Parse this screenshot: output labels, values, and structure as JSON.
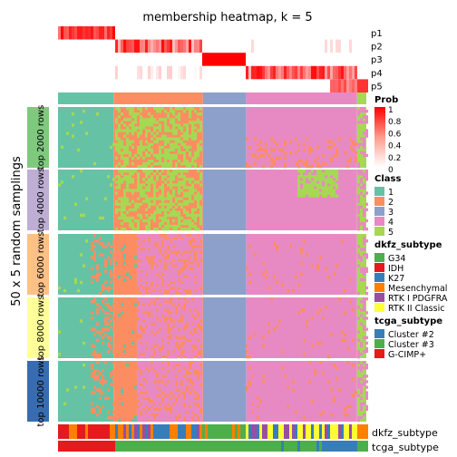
{
  "chart_data": {
    "type": "heatmap",
    "title": "membership heatmap, k = 5",
    "y_title": "50 x 5 random samplings",
    "probability_rows": [
      "p1",
      "p2",
      "p3",
      "p4",
      "p5"
    ],
    "class_row_label": "Class",
    "row_groups": [
      {
        "label": "top 2000 rows",
        "color": "#7fc97f"
      },
      {
        "label": "top 4000 rows",
        "color": "#beaed4"
      },
      {
        "label": "top 6000 rows",
        "color": "#fdc086"
      },
      {
        "label": "top 8000 rows",
        "color": "#ffff99"
      },
      {
        "label": "top 10000 rows",
        "color": "#386cb0"
      }
    ],
    "bottom_annotations": [
      "dkfz_subtype",
      "tcga_subtype"
    ],
    "class_colors": {
      "1": "#66c2a5",
      "2": "#fc8d62",
      "3": "#8da0cb",
      "4": "#e78ac3",
      "5": "#a6d854"
    },
    "legends": {
      "prob": {
        "title": "Prob",
        "ticks": [
          "1",
          "0.8",
          "0.6",
          "0.4",
          "0.2",
          "0"
        ],
        "colors": [
          "#ff0000",
          "#ffffff"
        ]
      },
      "class": {
        "title": "Class",
        "items": [
          {
            "label": "1",
            "color": "#66c2a5"
          },
          {
            "label": "2",
            "color": "#fc8d62"
          },
          {
            "label": "3",
            "color": "#8da0cb"
          },
          {
            "label": "4",
            "color": "#e78ac3"
          },
          {
            "label": "5",
            "color": "#a6d854"
          }
        ]
      },
      "dkfz_subtype": {
        "title": "dkfz_subtype",
        "items": [
          {
            "label": "G34",
            "color": "#4daf4a"
          },
          {
            "label": "IDH",
            "color": "#e41a1c"
          },
          {
            "label": "K27",
            "color": "#377eb8"
          },
          {
            "label": "Mesenchymal",
            "color": "#ff7f00"
          },
          {
            "label": "RTK I PDGFRA",
            "color": "#984ea3"
          },
          {
            "label": "RTK II Classic",
            "color": "#ffff33"
          }
        ]
      },
      "tcga_subtype": {
        "title": "tcga_subtype",
        "items": [
          {
            "label": "Cluster #2",
            "color": "#377eb8"
          },
          {
            "label": "Cluster #3",
            "color": "#4daf4a"
          },
          {
            "label": "G-CIMP+",
            "color": "#e41a1c"
          }
        ]
      }
    },
    "column_segments": [
      {
        "class": 1,
        "fraction": 0.18
      },
      {
        "class": 2,
        "fraction": 0.29
      },
      {
        "class": 3,
        "fraction": 0.14
      },
      {
        "class": 4,
        "fraction": 0.36
      },
      {
        "class": 5,
        "fraction": 0.03
      }
    ]
  }
}
